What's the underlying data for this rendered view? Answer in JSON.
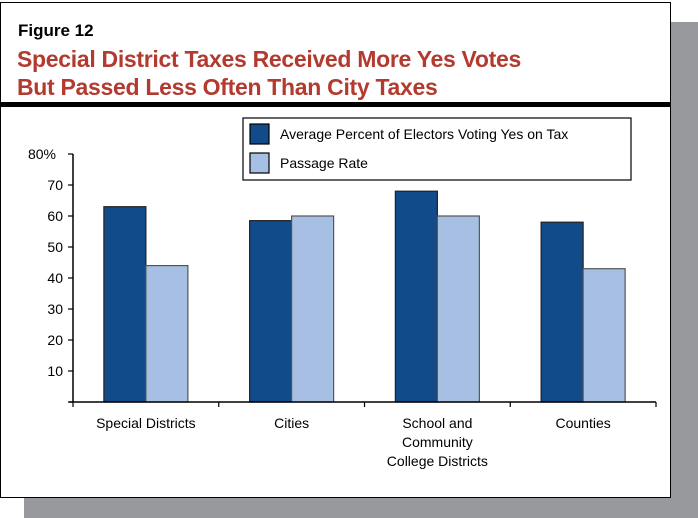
{
  "figure_label": "Figure 12",
  "title_lines": [
    "Special District Taxes Received More Yes Votes",
    "But Passed Less Often Than City Taxes"
  ],
  "colors": {
    "title": "#b23a2e",
    "series1": "#124b8a",
    "series2": "#a7bfe3",
    "shadow": "#98999c"
  },
  "chart_data": {
    "type": "bar",
    "title": "Special District Taxes Received More Yes Votes But Passed Less Often Than City Taxes",
    "categories": [
      [
        "Special Districts"
      ],
      [
        "Cities"
      ],
      [
        "School and",
        "Community",
        "College Districts"
      ],
      [
        "Counties"
      ]
    ],
    "series": [
      {
        "name": "Average Percent of Electors Voting Yes on Tax",
        "values": [
          63,
          58.5,
          68,
          58
        ]
      },
      {
        "name": "Passage Rate",
        "values": [
          44,
          60,
          60,
          43
        ]
      }
    ],
    "yticks": [
      "",
      "10",
      "20",
      "30",
      "40",
      "50",
      "60",
      "70",
      "80%"
    ],
    "ylim": [
      0,
      80
    ],
    "grid": false,
    "legend": "top-right"
  }
}
